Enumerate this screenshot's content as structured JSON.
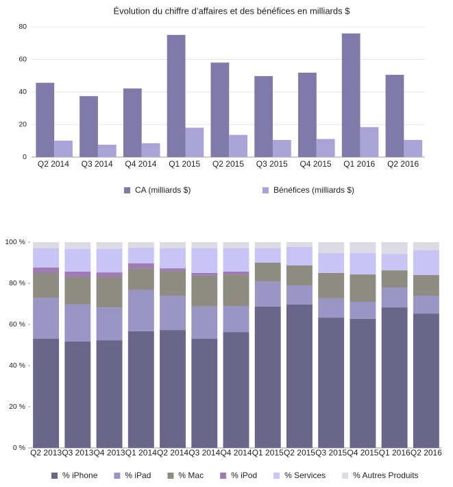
{
  "chart_data": [
    {
      "type": "bar",
      "title": "Évolution du chiffre d’affaires et des bénéfices en milliards $",
      "categories": [
        "Q2 2014",
        "Q3 2014",
        "Q4 2014",
        "Q1 2015",
        "Q2 2015",
        "Q3 2015",
        "Q4 2015",
        "Q1 2016",
        "Q2 2016"
      ],
      "series": [
        {
          "name": "CA (milliards $)",
          "color": "#7f7aa8",
          "values": [
            45.6,
            37.4,
            42.1,
            75,
            58,
            49.7,
            51.8,
            75.9,
            50.5
          ]
        },
        {
          "name": "Bénéfices (milliards $)",
          "color": "#a9a3d8",
          "values": [
            10.1,
            7.6,
            8.5,
            18,
            13.6,
            10.5,
            11.1,
            18.4,
            10.5
          ]
        }
      ],
      "ylim": [
        0,
        80
      ],
      "yticks": [
        0,
        20,
        40,
        60,
        80
      ],
      "grid": true,
      "stacked": false
    },
    {
      "type": "bar",
      "categories": [
        "Q2 2013",
        "Q3 2013",
        "Q4 2013",
        "Q1 2014",
        "Q2 2014",
        "Q3 2014",
        "Q4 2014",
        "Q1 2015",
        "Q2 2015",
        "Q3 2015",
        "Q4 2015",
        "Q1 2016",
        "Q2 2016"
      ],
      "series": [
        {
          "name": "% iPhone",
          "color": "#69668a",
          "values": [
            53,
            51.7,
            52.3,
            56.7,
            57.3,
            53,
            56.3,
            68.7,
            69.7,
            63.3,
            62.7,
            68.3,
            65.3
          ]
        },
        {
          "name": "% iPad",
          "color": "#9a95c4",
          "values": [
            20,
            18,
            16,
            20,
            16.7,
            15.7,
            12.7,
            12.3,
            9.3,
            9.4,
            8.3,
            9.7,
            8.7
          ]
        },
        {
          "name": "% Mac",
          "color": "#8e8c80",
          "values": [
            12,
            13.3,
            14.7,
            10.6,
            12,
            15,
            15.3,
            9,
            9.7,
            12.3,
            13.3,
            8.3,
            10
          ]
        },
        {
          "name": "% iPod",
          "color": "#a07cb4",
          "values": [
            2.7,
            2.7,
            2.3,
            2.4,
            1.3,
            1.3,
            1.4,
            0,
            0,
            0,
            0,
            0,
            0
          ]
        },
        {
          "name": "% Services",
          "color": "#c9c4f6",
          "values": [
            9.3,
            11,
            11.4,
            7.6,
            9.7,
            12,
            11.3,
            7,
            9,
            9.7,
            10.4,
            8,
            12
          ]
        },
        {
          "name": "% Autres Produits",
          "color": "#dcdbe5",
          "values": [
            3,
            3.3,
            3.3,
            2.7,
            3,
            3,
            3,
            3,
            2.3,
            5.3,
            5.3,
            5.7,
            4
          ]
        }
      ],
      "ylim": [
        0,
        100
      ],
      "yticks": [
        {
          "value": 0,
          "label": "0 %"
        },
        {
          "value": 20,
          "label": "20 %"
        },
        {
          "value": 40,
          "label": "40 %"
        },
        {
          "value": 60,
          "label": "60 %"
        },
        {
          "value": 80,
          "label": "80 %"
        },
        {
          "value": 100,
          "label": "100 %"
        }
      ],
      "grid": false,
      "stacked": true
    }
  ]
}
